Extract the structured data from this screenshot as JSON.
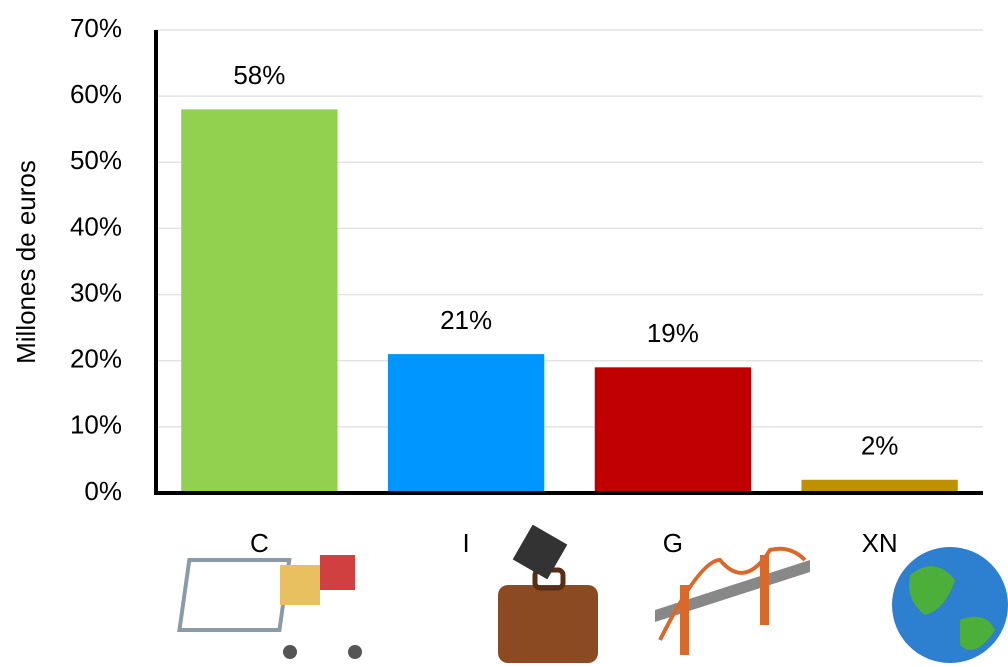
{
  "chart_data": {
    "type": "bar",
    "y_label": "Millones de euros",
    "categories": [
      "C",
      "I",
      "G",
      "XN"
    ],
    "values": [
      58,
      21,
      19,
      2
    ],
    "value_labels": [
      "58%",
      "21%",
      "19%",
      "2%"
    ],
    "colors": [
      "#92d050",
      "#0096ff",
      "#c00000",
      "#bf9000"
    ],
    "ylim": [
      0,
      70
    ],
    "yticks": [
      {
        "value": 0,
        "label": "0%"
      },
      {
        "value": 10,
        "label": "10%"
      },
      {
        "value": 20,
        "label": "20%"
      },
      {
        "value": 30,
        "label": "30%"
      },
      {
        "value": 40,
        "label": "40%"
      },
      {
        "value": 50,
        "label": "50%"
      },
      {
        "value": 60,
        "label": "60%"
      },
      {
        "value": 70,
        "label": "70%"
      }
    ],
    "grid": true
  }
}
